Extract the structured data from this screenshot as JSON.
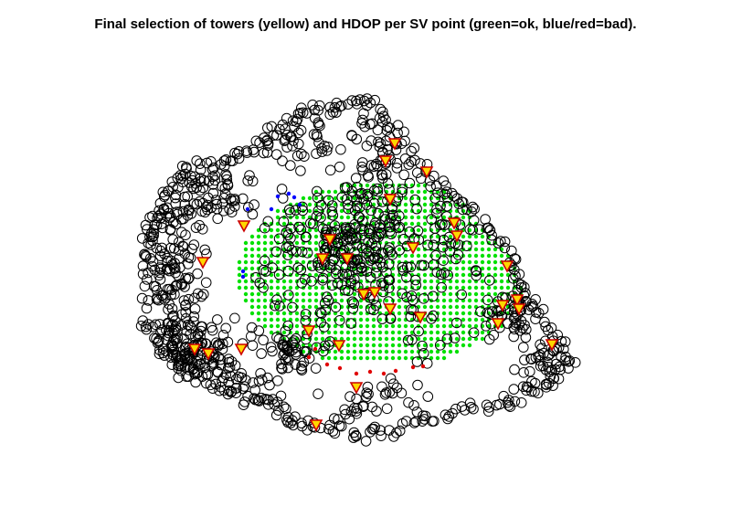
{
  "chart_data": {
    "type": "scatter",
    "title": "Final selection of towers (yellow) and HDOP per SV point (green=ok, blue/red=bad).",
    "xlabel": "",
    "ylabel": "",
    "axes_shown": false,
    "grid": false,
    "legend": "none",
    "colors": {
      "tower_circle": "#000000",
      "selected_tower_fill": "#ffd700",
      "selected_tower_edge": "#cc0000",
      "hdop_ok": "#00e000",
      "hdop_bad_blue": "#0000ff",
      "hdop_bad_red": "#e00000"
    }
  }
}
